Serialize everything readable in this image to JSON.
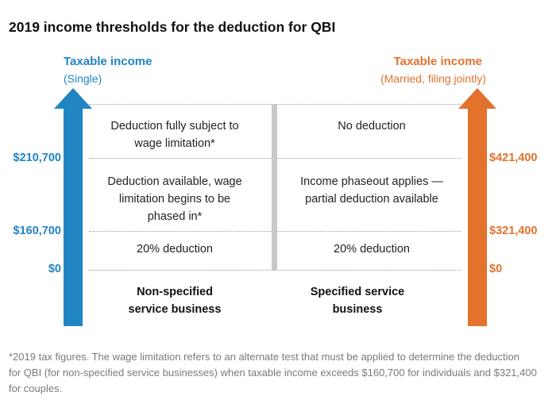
{
  "title": "2019 income thresholds for the deduction for QBI",
  "colors": {
    "single_blue": "#2184c3",
    "married_orange": "#e2722c",
    "divider_gray": "#c8c8c8"
  },
  "left_axis": {
    "title": "Taxable income",
    "subtitle": "(Single)",
    "thresholds": [
      "$210,700",
      "$160,700",
      "$0"
    ]
  },
  "right_axis": {
    "title": "Taxable income",
    "subtitle": "(Married, filing jointly)",
    "thresholds": [
      "$421,400",
      "$321,400",
      "$0"
    ]
  },
  "columns": {
    "non_specified": {
      "label_line1": "Non-specified",
      "label_line2": "service business",
      "rows": {
        "top": [
          "Deduction fully subject to",
          "wage limitation*"
        ],
        "middle": [
          "Deduction available, wage",
          "limitation begins to be",
          "phased in*"
        ],
        "bottom": [
          "20% deduction"
        ]
      }
    },
    "specified": {
      "label_line1": "Specified service",
      "label_line2": "business",
      "rows": {
        "top": [
          "No deduction"
        ],
        "middle": [
          "Income phaseout applies —",
          "partial deduction available"
        ],
        "bottom": [
          "20% deduction"
        ]
      }
    }
  },
  "footnote": {
    "line1": "*2019 tax figures. The wage limitation refers to an alternate test that must be applied to determine the deduction",
    "line2": "for QBI (for non-specified service businesses) when taxable income exceeds $160,700 for individuals and $321,400",
    "line3": "for couples."
  }
}
